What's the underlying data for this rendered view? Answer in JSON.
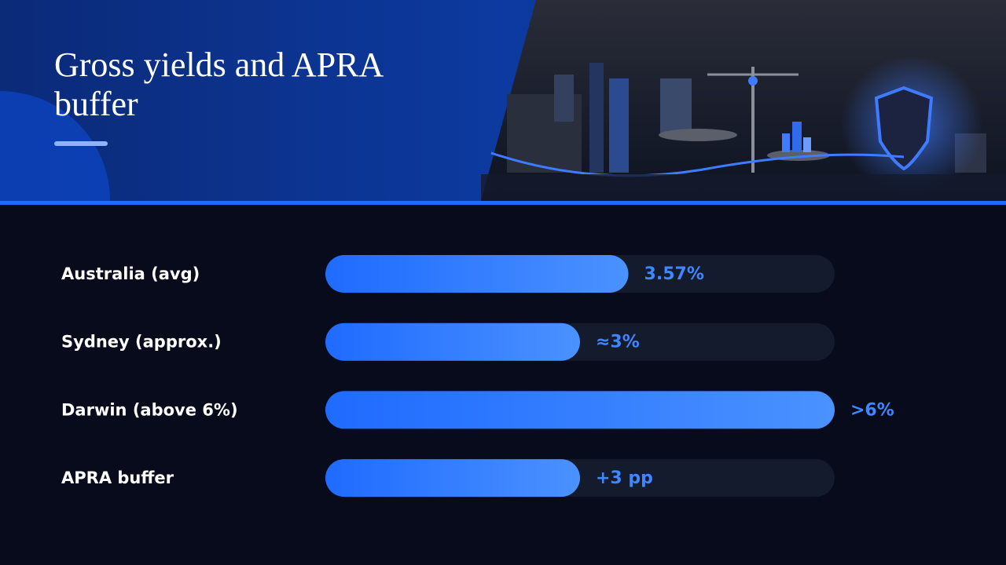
{
  "header": {
    "title": "Gross yields and APRA buffer"
  },
  "chart_data": {
    "type": "bar",
    "orientation": "horizontal",
    "categories": [
      "Australia (avg)",
      "Sydney (approx.)",
      "Darwin (above 6%)",
      "APRA buffer"
    ],
    "values": [
      3.57,
      3,
      6,
      3
    ],
    "value_labels": [
      "3.57%",
      "≈3%",
      ">6%",
      "+3 pp"
    ],
    "xlim": [
      0,
      6
    ],
    "color": "#1f6bff"
  }
}
